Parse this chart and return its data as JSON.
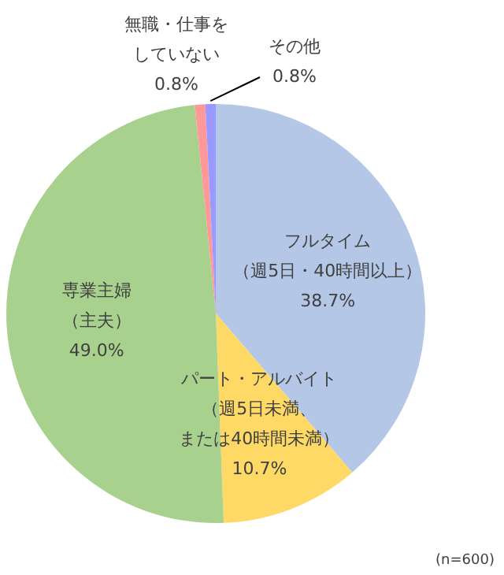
{
  "chart_data": {
    "type": "pie",
    "categories": [
      "フルタイム（週5日・40時間以上）",
      "パート・アルバイト（週5日未満、または40時間未満）",
      "専業主婦（主夫）",
      "無職・仕事をしていない",
      "その他"
    ],
    "values": [
      38.7,
      10.7,
      49.0,
      0.8,
      0.8
    ],
    "colors": [
      "#b4c7e7",
      "#ffd966",
      "#a9d18e",
      "#ff9999",
      "#9999ff"
    ],
    "value_labels": [
      "38.7%",
      "10.7%",
      "49.0%",
      "0.8%",
      "0.8%"
    ],
    "legend": false,
    "annotations": [
      "(n=600)"
    ]
  }
}
